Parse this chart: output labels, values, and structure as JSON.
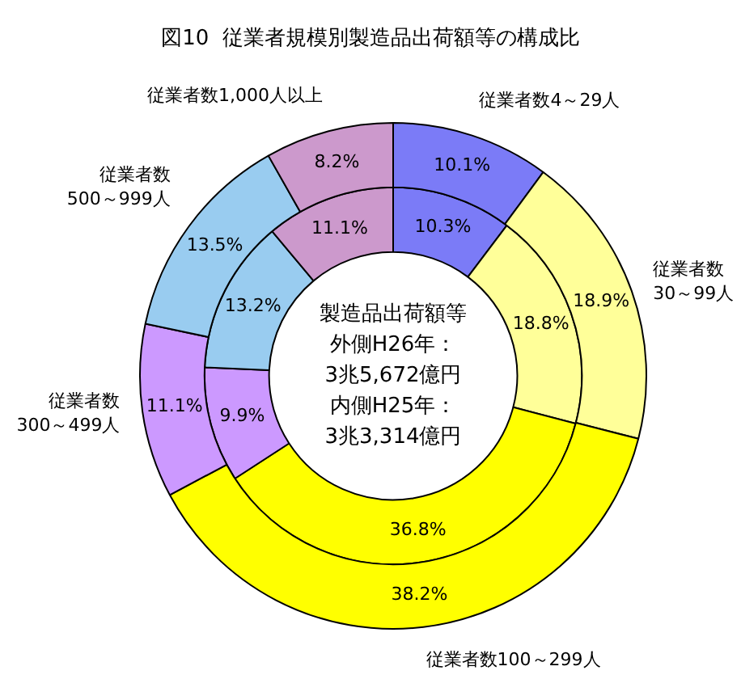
{
  "chart_data": {
    "type": "donut",
    "title": "図10  従業者規模別製造品出荷額等の構成比",
    "categories": [
      "従業者数4～29人",
      "従業者数\n30～99人",
      "従業者数100～299人",
      "従業者数\n300～499人",
      "従業者数\n500～999人",
      "従業者数1,000人以上"
    ],
    "colors": [
      "#7b7bf7",
      "#ffff99",
      "#ffff00",
      "#cc99ff",
      "#99ccf0",
      "#cc99cc"
    ],
    "series": [
      {
        "values": [
          10.1,
          18.9,
          38.2,
          11.1,
          13.5,
          8.2
        ],
        "value_labels": [
          "10.1%",
          "18.9%",
          "38.2%",
          "11.1%",
          "13.5%",
          "8.2%"
        ]
      },
      {
        "values": [
          10.3,
          18.8,
          36.8,
          9.9,
          13.2,
          11.1
        ],
        "value_labels": [
          "10.3%",
          "18.8%",
          "36.8%",
          "9.9%",
          "13.2%",
          "11.1%"
        ]
      }
    ],
    "annotations": [
      "製造品出荷額等",
      "外側H26年：",
      "3兆5,672億円",
      "内側H25年：",
      "3兆3,314億円"
    ],
    "legend": false
  }
}
